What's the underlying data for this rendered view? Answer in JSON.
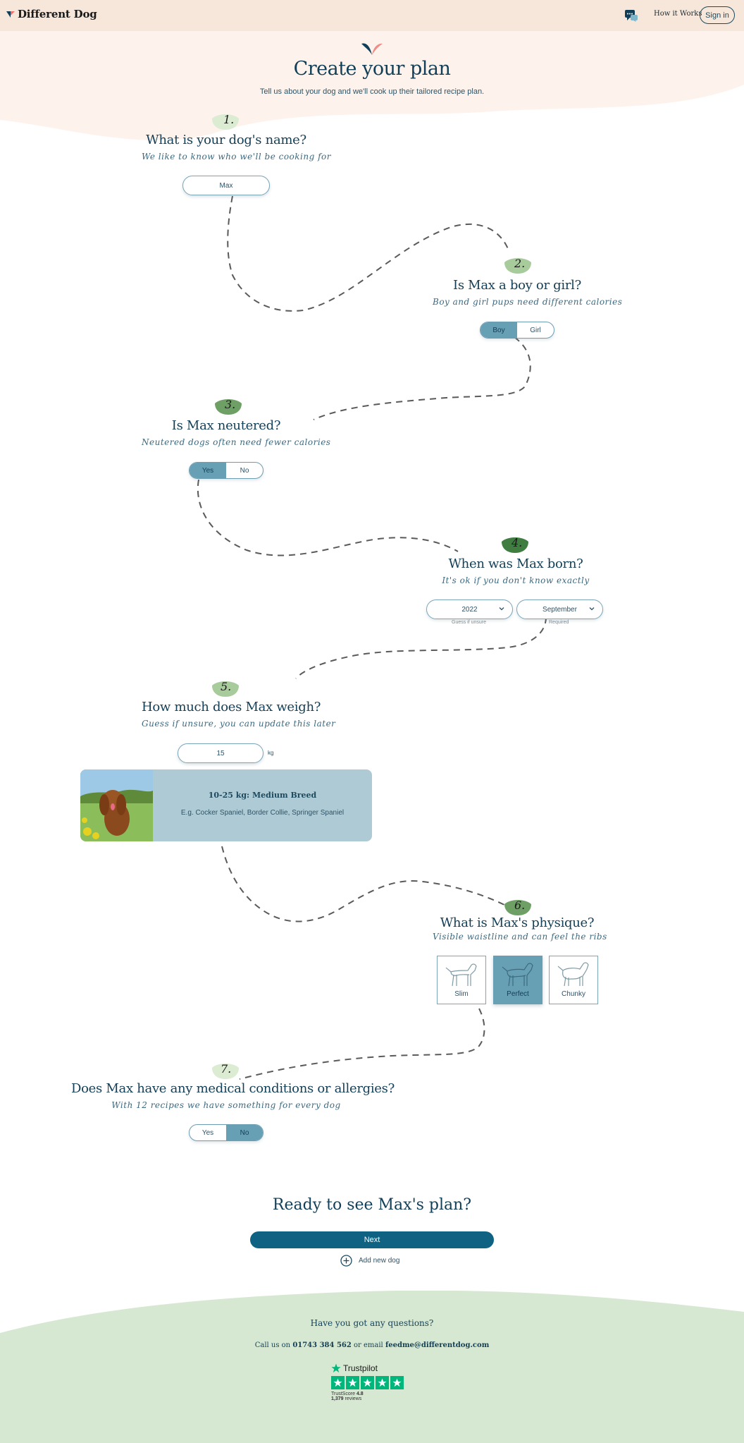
{
  "header": {
    "logo_text": "Different Dog",
    "nav_link": "How it Works",
    "signin_label": "Sign in"
  },
  "hero": {
    "title": "Create your plan",
    "subtitle": "Tell us about your dog and we'll cook up their tailored recipe plan."
  },
  "steps": [
    {
      "number": "1.",
      "question": "What is your dog's name?",
      "hint": "We like to know who we'll be cooking for",
      "input_value": "Max"
    },
    {
      "number": "2.",
      "question": "Is Max a boy or girl?",
      "hint": "Boy and girl pups need different calories",
      "options": [
        "Boy",
        "Girl"
      ],
      "selected": "Boy"
    },
    {
      "number": "3.",
      "question": "Is Max neutered?",
      "hint": "Neutered dogs often need fewer calories",
      "options": [
        "Yes",
        "No"
      ],
      "selected": "Yes"
    },
    {
      "number": "4.",
      "question": "When was Max born?",
      "hint": "It's ok if you don't know exactly",
      "year": "2022",
      "year_note": "Guess if unsure",
      "month": "September",
      "month_note": "Required"
    },
    {
      "number": "5.",
      "question": "How much does Max weigh?",
      "hint": "Guess if unsure, you can update this later",
      "weight_value": "15",
      "unit": "kg",
      "breed_title": "10-25 kg: Medium Breed",
      "breed_examples": "E.g. Cocker Spaniel, Border Collie, Springer Spaniel"
    },
    {
      "number": "6.",
      "question": "What is Max's physique?",
      "hint": "Visible waistline and can feel the ribs",
      "options": [
        "Slim",
        "Perfect",
        "Chunky"
      ],
      "selected": "Perfect"
    },
    {
      "number": "7.",
      "question": "Does Max have any medical conditions or allergies?",
      "hint": "With 12 recipes we have something for every dog",
      "options": [
        "Yes",
        "No"
      ],
      "selected": "No"
    }
  ],
  "cta": {
    "title": "Ready to see Max's plan?",
    "next_label": "Next",
    "add_dog_label": "Add new dog"
  },
  "footer": {
    "question": "Have you got any questions?",
    "call_prefix": "Call us on",
    "phone": "01743 384 562",
    "email_prefix": "or email",
    "email": "feedme@differentdog.com",
    "trustpilot_name": "Trustpilot",
    "trustscore_label": "TrustScore",
    "trustscore_value": "4.8",
    "reviews_count": "1,379",
    "reviews_label": "reviews"
  },
  "colors": {
    "header_bg": "#f6e7da",
    "hero_bg": "#fdf3ec",
    "selected_option": "#679fb4",
    "primary_button": "#0f6282",
    "footer_bg": "#d6e8d2",
    "trustpilot_green": "#00b67a"
  }
}
